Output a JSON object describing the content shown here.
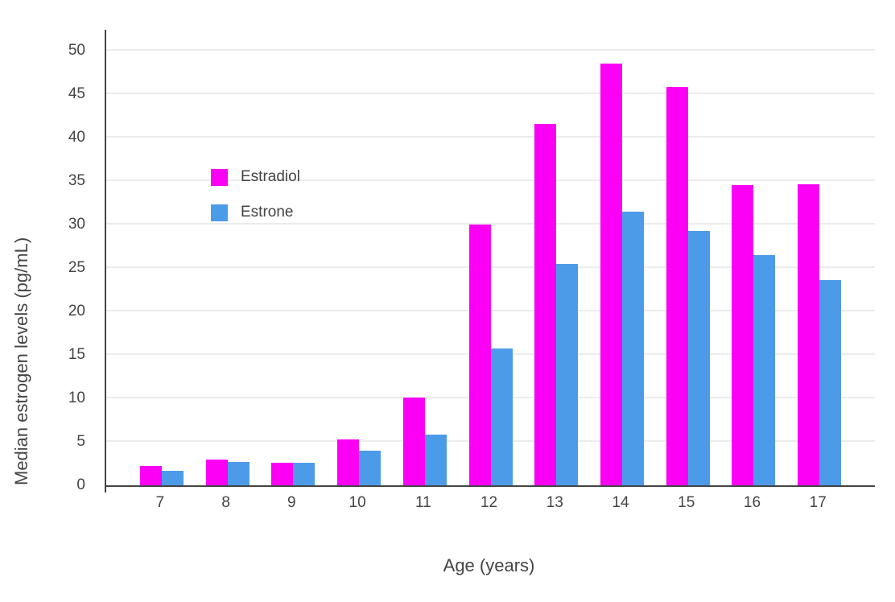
{
  "chart_data": {
    "type": "bar",
    "title": "",
    "xlabel": "Age (years)",
    "ylabel": "Median estrogen levels (pg/mL)",
    "categories": [
      "7",
      "8",
      "9",
      "10",
      "11",
      "12",
      "13",
      "14",
      "15",
      "16",
      "17"
    ],
    "series": [
      {
        "name": "Estradiol",
        "color": "#FB00F5",
        "values": [
          2.2,
          3.0,
          2.6,
          5.3,
          10.1,
          30.0,
          41.6,
          48.5,
          45.8,
          34.5,
          34.6
        ]
      },
      {
        "name": "Estrone",
        "color": "#4C9BE8",
        "values": [
          1.7,
          2.7,
          2.6,
          4.0,
          5.8,
          15.7,
          25.5,
          31.5,
          29.3,
          26.5,
          23.6
        ]
      }
    ],
    "ylim": [
      0,
      50
    ],
    "yticks": [
      0,
      5,
      10,
      15,
      20,
      25,
      30,
      35,
      40,
      45,
      50
    ],
    "grid": true,
    "legend_position": "inside-top-left",
    "axis_color": "#444444",
    "grid_color": "#ececec",
    "background_color": "#ffffff"
  }
}
